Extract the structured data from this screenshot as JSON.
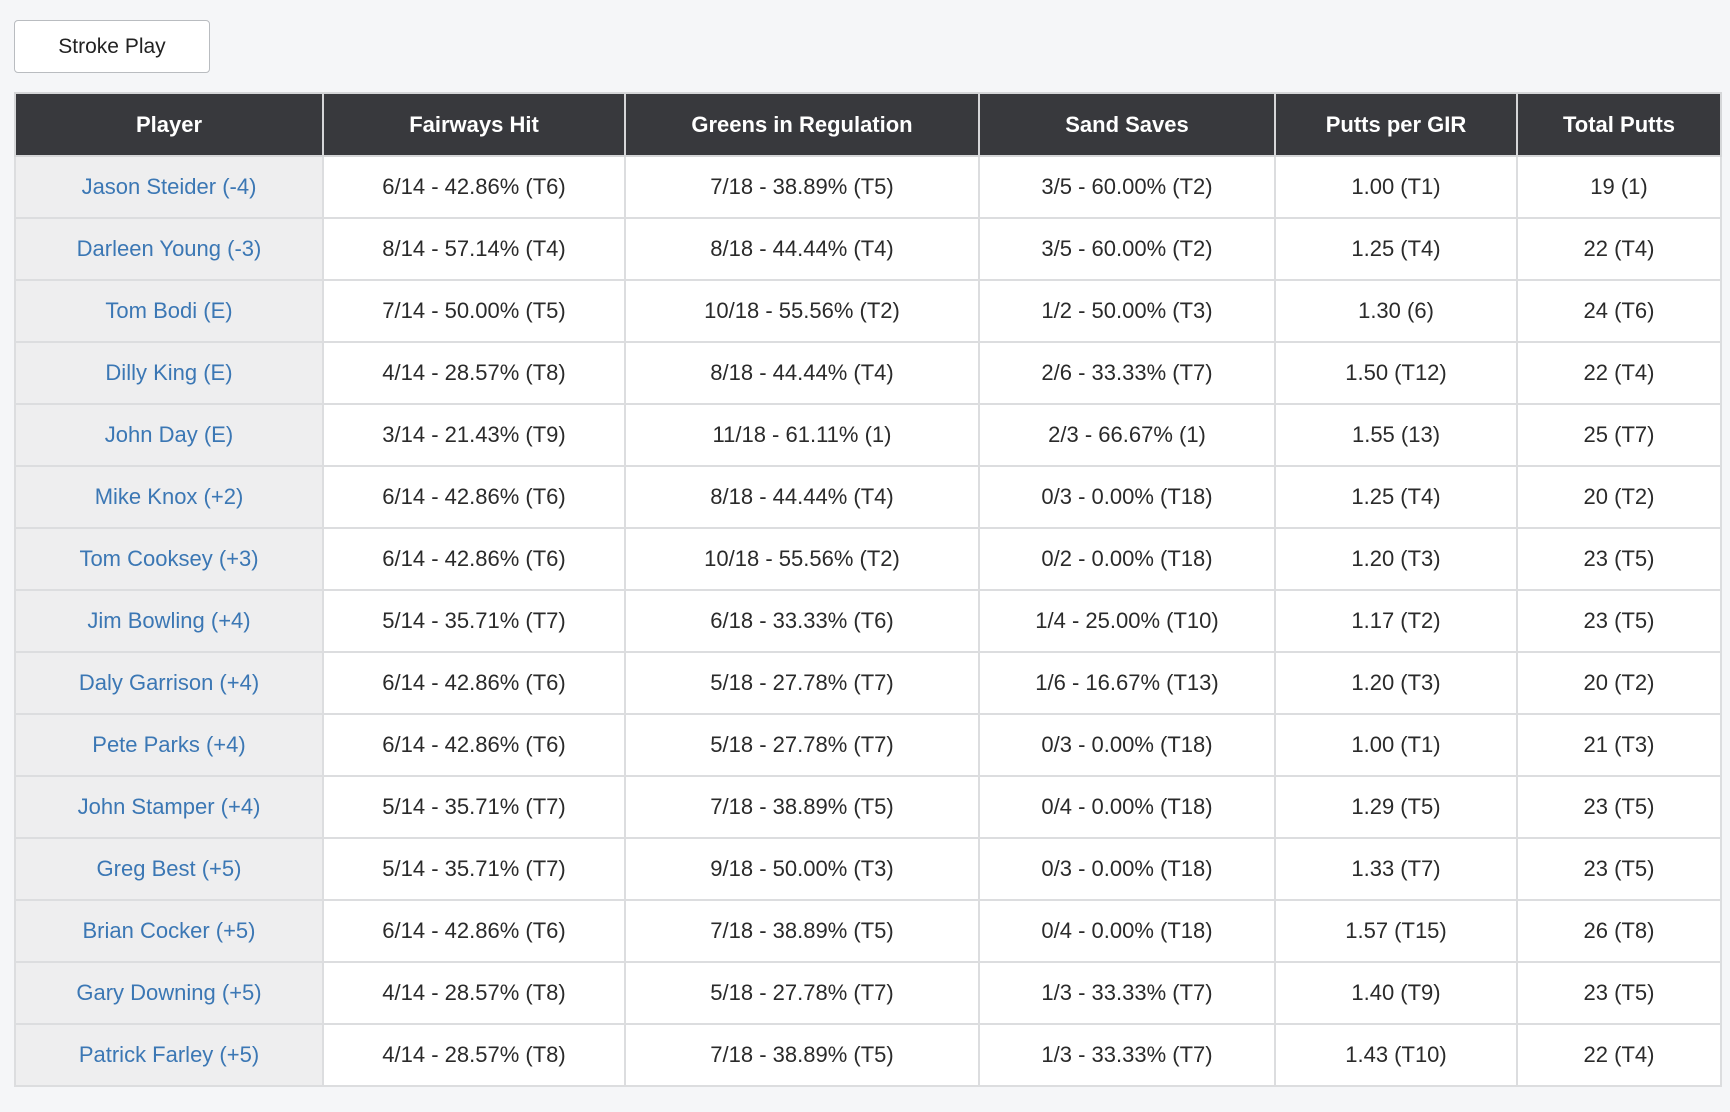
{
  "mode_button": {
    "label": "Stroke Play"
  },
  "table": {
    "headers": [
      "Player",
      "Fairways Hit",
      "Greens in Regulation",
      "Sand Saves",
      "Putts per GIR",
      "Total Putts"
    ],
    "rows": [
      {
        "player": "Jason Steider (-4)",
        "fairways": "6/14 - 42.86% (T6)",
        "gir": "7/18 - 38.89% (T5)",
        "sand": "3/5 - 60.00% (T2)",
        "putts_gir": "1.00 (T1)",
        "total_putts": "19 (1)"
      },
      {
        "player": "Darleen Young (-3)",
        "fairways": "8/14 - 57.14% (T4)",
        "gir": "8/18 - 44.44% (T4)",
        "sand": "3/5 - 60.00% (T2)",
        "putts_gir": "1.25 (T4)",
        "total_putts": "22 (T4)"
      },
      {
        "player": "Tom Bodi (E)",
        "fairways": "7/14 - 50.00% (T5)",
        "gir": "10/18 - 55.56% (T2)",
        "sand": "1/2 - 50.00% (T3)",
        "putts_gir": "1.30 (6)",
        "total_putts": "24 (T6)"
      },
      {
        "player": "Dilly King (E)",
        "fairways": "4/14 - 28.57% (T8)",
        "gir": "8/18 - 44.44% (T4)",
        "sand": "2/6 - 33.33% (T7)",
        "putts_gir": "1.50 (T12)",
        "total_putts": "22 (T4)"
      },
      {
        "player": "John Day (E)",
        "fairways": "3/14 - 21.43% (T9)",
        "gir": "11/18 - 61.11% (1)",
        "sand": "2/3 - 66.67% (1)",
        "putts_gir": "1.55 (13)",
        "total_putts": "25 (T7)"
      },
      {
        "player": "Mike Knox (+2)",
        "fairways": "6/14 - 42.86% (T6)",
        "gir": "8/18 - 44.44% (T4)",
        "sand": "0/3 - 0.00% (T18)",
        "putts_gir": "1.25 (T4)",
        "total_putts": "20 (T2)"
      },
      {
        "player": "Tom Cooksey (+3)",
        "fairways": "6/14 - 42.86% (T6)",
        "gir": "10/18 - 55.56% (T2)",
        "sand": "0/2 - 0.00% (T18)",
        "putts_gir": "1.20 (T3)",
        "total_putts": "23 (T5)"
      },
      {
        "player": "Jim Bowling (+4)",
        "fairways": "5/14 - 35.71% (T7)",
        "gir": "6/18 - 33.33% (T6)",
        "sand": "1/4 - 25.00% (T10)",
        "putts_gir": "1.17 (T2)",
        "total_putts": "23 (T5)"
      },
      {
        "player": "Daly Garrison (+4)",
        "fairways": "6/14 - 42.86% (T6)",
        "gir": "5/18 - 27.78% (T7)",
        "sand": "1/6 - 16.67% (T13)",
        "putts_gir": "1.20 (T3)",
        "total_putts": "20 (T2)"
      },
      {
        "player": "Pete Parks (+4)",
        "fairways": "6/14 - 42.86% (T6)",
        "gir": "5/18 - 27.78% (T7)",
        "sand": "0/3 - 0.00% (T18)",
        "putts_gir": "1.00 (T1)",
        "total_putts": "21 (T3)"
      },
      {
        "player": "John Stamper (+4)",
        "fairways": "5/14 - 35.71% (T7)",
        "gir": "7/18 - 38.89% (T5)",
        "sand": "0/4 - 0.00% (T18)",
        "putts_gir": "1.29 (T5)",
        "total_putts": "23 (T5)"
      },
      {
        "player": "Greg Best (+5)",
        "fairways": "5/14 - 35.71% (T7)",
        "gir": "9/18 - 50.00% (T3)",
        "sand": "0/3 - 0.00% (T18)",
        "putts_gir": "1.33 (T7)",
        "total_putts": "23 (T5)"
      },
      {
        "player": "Brian Cocker (+5)",
        "fairways": "6/14 - 42.86% (T6)",
        "gir": "7/18 - 38.89% (T5)",
        "sand": "0/4 - 0.00% (T18)",
        "putts_gir": "1.57 (T15)",
        "total_putts": "26 (T8)"
      },
      {
        "player": "Gary Downing (+5)",
        "fairways": "4/14 - 28.57% (T8)",
        "gir": "5/18 - 27.78% (T7)",
        "sand": "1/3 - 33.33% (T7)",
        "putts_gir": "1.40 (T9)",
        "total_putts": "23 (T5)"
      },
      {
        "player": "Patrick Farley (+5)",
        "fairways": "4/14 - 28.57% (T8)",
        "gir": "7/18 - 38.89% (T5)",
        "sand": "1/3 - 33.33% (T7)",
        "putts_gir": "1.43 (T10)",
        "total_putts": "22 (T4)"
      }
    ]
  },
  "colors": {
    "header_bg": "#38393d",
    "link": "#3b77b4",
    "player_cell_bg": "#eeeeef"
  }
}
